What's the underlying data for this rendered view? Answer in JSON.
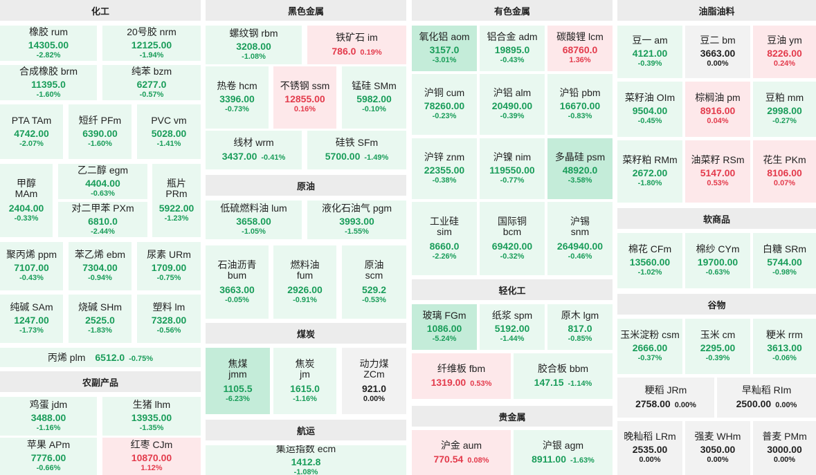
{
  "colors": {
    "down": "#1a9d5a",
    "up": "#e33b4c",
    "down_bg": "#e9f8f0",
    "down_bg_strong": "#c4ecd9",
    "up_bg": "#fde8ea",
    "flat_bg": "#f2f2f2",
    "header_bg": "#ececec"
  },
  "sections": {
    "chemical": "化工",
    "ferrous": "黑色金属",
    "nonferrous": "有色金属",
    "oils": "油脂油料",
    "agri": "农副产品",
    "crude": "原油",
    "coal": "煤炭",
    "shipping": "航运",
    "light": "轻化工",
    "precious": "贵金属",
    "soft": "软商品",
    "grain": "谷物"
  },
  "tiles": {
    "rubber": {
      "name": "橡胶  rum",
      "price": "14305.00",
      "chg": "-2.82%"
    },
    "nr": {
      "name": "20号胶  nrm",
      "price": "12125.00",
      "chg": "-1.94%"
    },
    "brm": {
      "name": "合成橡胶  brm",
      "price": "11395.0",
      "chg": "-1.60%"
    },
    "bzm": {
      "name": "纯苯  bzm",
      "price": "6277.0",
      "chg": "-0.57%"
    },
    "pta": {
      "name": "PTA  TAm",
      "price": "4742.00",
      "chg": "-2.07%"
    },
    "pf": {
      "name": "短纤  PFm",
      "price": "6390.00",
      "chg": "-1.60%"
    },
    "pvc": {
      "name": "PVC  vm",
      "price": "5028.00",
      "chg": "-1.41%"
    },
    "ma": {
      "name1": "甲醇",
      "name2": "MAm",
      "price": "2404.00",
      "chg": "-0.33%"
    },
    "eg": {
      "name": "乙二醇  egm",
      "price": "4404.00",
      "chg": "-0.63%"
    },
    "px": {
      "name": "对二甲苯  PXm",
      "price": "6810.0",
      "chg": "-2.44%"
    },
    "pr": {
      "name1": "瓶片",
      "name2": "PRm",
      "price": "5922.00",
      "chg": "-1.23%"
    },
    "pp": {
      "name": "聚丙烯  ppm",
      "price": "7107.00",
      "chg": "-0.43%"
    },
    "eb": {
      "name": "苯乙烯  ebm",
      "price": "7304.00",
      "chg": "-0.94%"
    },
    "ur": {
      "name": "尿素  URm",
      "price": "1709.00",
      "chg": "-0.75%"
    },
    "sa": {
      "name": "纯碱  SAm",
      "price": "1247.00",
      "chg": "-1.73%"
    },
    "sh": {
      "name": "烧碱  SHm",
      "price": "2525.0",
      "chg": "-1.83%"
    },
    "l": {
      "name": "塑料  lm",
      "price": "7328.00",
      "chg": "-0.56%"
    },
    "pl": {
      "name": "丙烯  plm",
      "price": "6512.0",
      "chg": "-0.75%"
    },
    "jd": {
      "name": "鸡蛋  jdm",
      "price": "3488.00",
      "chg": "-1.16%"
    },
    "lh": {
      "name": "生猪  lhm",
      "price": "13935.00",
      "chg": "-1.35%"
    },
    "ap": {
      "name": "苹果  APm",
      "price": "7776.00",
      "chg": "-0.66%"
    },
    "cj": {
      "name": "红枣  CJm",
      "price": "10870.00",
      "chg": "1.12%"
    },
    "rb": {
      "name": "螺纹钢  rbm",
      "price": "3208.00",
      "chg": "-1.08%"
    },
    "i": {
      "name": "铁矿石  im",
      "price": "786.0",
      "chg": "0.19%"
    },
    "hc": {
      "name": "热卷  hcm",
      "price": "3396.00",
      "chg": "-0.73%"
    },
    "ss": {
      "name": "不锈钢  ssm",
      "price": "12855.00",
      "chg": "0.16%"
    },
    "sm": {
      "name": "锰硅  SMm",
      "price": "5982.00",
      "chg": "-0.10%"
    },
    "wr": {
      "name": "线材  wrm",
      "price": "3437.00",
      "chg": "-0.41%"
    },
    "sf": {
      "name": "硅铁  SFm",
      "price": "5700.00",
      "chg": "-1.49%"
    },
    "lu": {
      "name": "低硫燃料油  lum",
      "price": "3658.00",
      "chg": "-1.05%"
    },
    "pg": {
      "name": "液化石油气  pgm",
      "price": "3993.00",
      "chg": "-1.55%"
    },
    "bu": {
      "name1": "石油沥青",
      "name2": "bum",
      "price": "3663.00",
      "chg": "-0.05%"
    },
    "fu": {
      "name1": "燃料油",
      "name2": "fum",
      "price": "2926.00",
      "chg": "-0.91%"
    },
    "sc": {
      "name1": "原油",
      "name2": "scm",
      "price": "529.2",
      "chg": "-0.53%"
    },
    "jm": {
      "name1": "焦煤",
      "name2": "jmm",
      "price": "1105.5",
      "chg": "-6.23%"
    },
    "j": {
      "name1": "焦炭",
      "name2": "jm",
      "price": "1615.0",
      "chg": "-1.16%"
    },
    "zc": {
      "name1": "动力煤",
      "name2": "ZCm",
      "price": "921.0",
      "chg": "0.00%"
    },
    "ec": {
      "name": "集运指数  ecm",
      "price": "1412.8",
      "chg": "-1.08%"
    },
    "ao": {
      "name": "氧化铝  aom",
      "price": "3157.0",
      "chg": "-3.01%"
    },
    "ad": {
      "name": "铝合金  adm",
      "price": "19895.0",
      "chg": "-0.43%"
    },
    "lc": {
      "name": "碳酸锂  lcm",
      "price": "68760.0",
      "chg": "1.36%"
    },
    "cu": {
      "name": "沪铜  cum",
      "price": "78260.00",
      "chg": "-0.23%"
    },
    "al": {
      "name": "沪铝  alm",
      "price": "20490.00",
      "chg": "-0.39%"
    },
    "pb": {
      "name": "沪铅  pbm",
      "price": "16670.00",
      "chg": "-0.83%"
    },
    "zn": {
      "name": "沪锌  znm",
      "price": "22355.00",
      "chg": "-0.38%"
    },
    "ni": {
      "name": "沪镍  nim",
      "price": "119550.00",
      "chg": "-0.77%"
    },
    "ps": {
      "name": "多晶硅  psm",
      "price": "48920.0",
      "chg": "-3.58%"
    },
    "si": {
      "name1": "工业硅",
      "name2": "sim",
      "price": "8660.0",
      "chg": "-2.26%"
    },
    "bc": {
      "name1": "国际铜",
      "name2": "bcm",
      "price": "69420.00",
      "chg": "-0.32%"
    },
    "sn": {
      "name1": "沪锡",
      "name2": "snm",
      "price": "264940.00",
      "chg": "-0.46%"
    },
    "fg": {
      "name": "玻璃  FGm",
      "price": "1086.00",
      "chg": "-5.24%"
    },
    "sp": {
      "name": "纸浆  spm",
      "price": "5192.00",
      "chg": "-1.44%"
    },
    "lg": {
      "name": "原木  lgm",
      "price": "817.0",
      "chg": "-0.85%"
    },
    "fb": {
      "name": "纤维板  fbm",
      "price": "1319.00",
      "chg": "0.53%"
    },
    "bb": {
      "name": "胶合板  bbm",
      "price": "147.15",
      "chg": "-1.14%"
    },
    "au": {
      "name": "沪金  aum",
      "price": "770.54",
      "chg": "0.08%"
    },
    "ag": {
      "name": "沪银  agm",
      "price": "8911.00",
      "chg": "-1.63%"
    },
    "a": {
      "name": "豆一  am",
      "price": "4121.00",
      "chg": "-0.39%"
    },
    "b": {
      "name": "豆二  bm",
      "price": "3663.00",
      "chg": "0.00%"
    },
    "y": {
      "name": "豆油  ym",
      "price": "8226.00",
      "chg": "0.24%"
    },
    "oi": {
      "name": "菜籽油  OIm",
      "price": "9504.00",
      "chg": "-0.45%"
    },
    "p": {
      "name": "棕榈油  pm",
      "price": "8916.00",
      "chg": "0.04%"
    },
    "m": {
      "name": "豆粕  mm",
      "price": "2998.00",
      "chg": "-0.27%"
    },
    "rm": {
      "name": "菜籽粕  RMm",
      "price": "2672.00",
      "chg": "-1.80%"
    },
    "rs": {
      "name": "油菜籽  RSm",
      "price": "5147.00",
      "chg": "0.53%"
    },
    "pk": {
      "name": "花生  PKm",
      "price": "8106.00",
      "chg": "0.07%"
    },
    "cf": {
      "name": "棉花  CFm",
      "price": "13560.00",
      "chg": "-1.02%"
    },
    "cy": {
      "name": "棉纱  CYm",
      "price": "19700.00",
      "chg": "-0.63%"
    },
    "sr": {
      "name": "白糖  SRm",
      "price": "5744.00",
      "chg": "-0.98%"
    },
    "cs": {
      "name": "玉米淀粉  csm",
      "price": "2666.00",
      "chg": "-0.37%"
    },
    "c": {
      "name": "玉米  cm",
      "price": "2295.00",
      "chg": "-0.39%"
    },
    "rr": {
      "name": "粳米  rrm",
      "price": "3613.00",
      "chg": "-0.06%"
    },
    "jr": {
      "name": "粳稻  JRm",
      "price": "2758.00",
      "chg": "0.00%"
    },
    "ri": {
      "name": "早籼稻  RIm",
      "price": "2500.00",
      "chg": "0.00%"
    },
    "lr": {
      "name": "晚籼稻  LRm",
      "price": "2535.00",
      "chg": "0.00%"
    },
    "wh": {
      "name": "强麦  WHm",
      "price": "3050.00",
      "chg": "0.00%"
    },
    "pm": {
      "name": "普麦  PMm",
      "price": "3000.00",
      "chg": "0.00%"
    }
  }
}
